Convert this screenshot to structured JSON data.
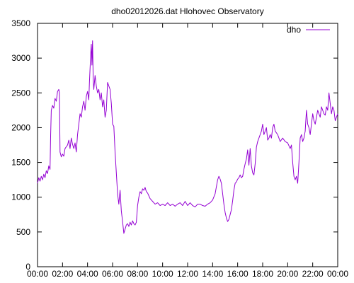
{
  "chart_data": {
    "type": "line",
    "title": "dho02012026.dat Hlohovec Observatory",
    "xlabel": "",
    "ylabel": "",
    "x_unit": "hours",
    "xlim": [
      0,
      24
    ],
    "ylim": [
      0,
      3500
    ],
    "x_ticks": [
      {
        "value": 0,
        "label": "00:00"
      },
      {
        "value": 2,
        "label": "02:00"
      },
      {
        "value": 4,
        "label": "04:00"
      },
      {
        "value": 6,
        "label": "06:00"
      },
      {
        "value": 8,
        "label": "08:00"
      },
      {
        "value": 10,
        "label": "10:00"
      },
      {
        "value": 12,
        "label": "12:00"
      },
      {
        "value": 14,
        "label": "14:00"
      },
      {
        "value": 16,
        "label": "16:00"
      },
      {
        "value": 18,
        "label": "18:00"
      },
      {
        "value": 20,
        "label": "20:00"
      },
      {
        "value": 22,
        "label": "22:00"
      },
      {
        "value": 24,
        "label": "00:00"
      }
    ],
    "y_ticks": [
      {
        "value": 0,
        "label": "0"
      },
      {
        "value": 500,
        "label": "500"
      },
      {
        "value": 1000,
        "label": "1000"
      },
      {
        "value": 1500,
        "label": "1500"
      },
      {
        "value": 2000,
        "label": "2000"
      },
      {
        "value": 2500,
        "label": "2500"
      },
      {
        "value": 3000,
        "label": "3000"
      },
      {
        "value": 3500,
        "label": "3500"
      }
    ],
    "grid": false,
    "legend_position": "top-right",
    "series": [
      {
        "name": "dho",
        "color": "#9400d3",
        "points": [
          [
            0.0,
            1200
          ],
          [
            0.1,
            1280
          ],
          [
            0.2,
            1230
          ],
          [
            0.3,
            1300
          ],
          [
            0.4,
            1250
          ],
          [
            0.5,
            1330
          ],
          [
            0.6,
            1280
          ],
          [
            0.7,
            1380
          ],
          [
            0.8,
            1340
          ],
          [
            0.9,
            1450
          ],
          [
            1.0,
            1400
          ],
          [
            1.05,
            1900
          ],
          [
            1.1,
            2250
          ],
          [
            1.2,
            2320
          ],
          [
            1.3,
            2280
          ],
          [
            1.4,
            2420
          ],
          [
            1.5,
            2380
          ],
          [
            1.6,
            2520
          ],
          [
            1.7,
            2550
          ],
          [
            1.75,
            2500
          ],
          [
            1.8,
            1650
          ],
          [
            1.9,
            1580
          ],
          [
            2.0,
            1620
          ],
          [
            2.1,
            1590
          ],
          [
            2.2,
            1700
          ],
          [
            2.4,
            1750
          ],
          [
            2.5,
            1820
          ],
          [
            2.6,
            1700
          ],
          [
            2.7,
            1850
          ],
          [
            2.8,
            1760
          ],
          [
            2.9,
            1700
          ],
          [
            3.0,
            1780
          ],
          [
            3.1,
            1650
          ],
          [
            3.2,
            1900
          ],
          [
            3.3,
            2050
          ],
          [
            3.4,
            2200
          ],
          [
            3.5,
            2150
          ],
          [
            3.6,
            2300
          ],
          [
            3.7,
            2380
          ],
          [
            3.8,
            2250
          ],
          [
            3.9,
            2450
          ],
          [
            4.0,
            2520
          ],
          [
            4.1,
            2400
          ],
          [
            4.15,
            2650
          ],
          [
            4.2,
            2850
          ],
          [
            4.25,
            3050
          ],
          [
            4.3,
            3200
          ],
          [
            4.35,
            2900
          ],
          [
            4.4,
            3250
          ],
          [
            4.45,
            2700
          ],
          [
            4.5,
            2550
          ],
          [
            4.6,
            2750
          ],
          [
            4.7,
            2600
          ],
          [
            4.8,
            2500
          ],
          [
            4.9,
            2550
          ],
          [
            5.0,
            2400
          ],
          [
            5.1,
            2500
          ],
          [
            5.2,
            2300
          ],
          [
            5.3,
            2400
          ],
          [
            5.4,
            2150
          ],
          [
            5.5,
            2250
          ],
          [
            5.6,
            2650
          ],
          [
            5.7,
            2600
          ],
          [
            5.8,
            2550
          ],
          [
            5.9,
            2350
          ],
          [
            6.0,
            2050
          ],
          [
            6.1,
            2020
          ],
          [
            6.2,
            1650
          ],
          [
            6.3,
            1350
          ],
          [
            6.4,
            1050
          ],
          [
            6.5,
            900
          ],
          [
            6.6,
            1100
          ],
          [
            6.7,
            800
          ],
          [
            6.8,
            650
          ],
          [
            6.9,
            480
          ],
          [
            7.0,
            540
          ],
          [
            7.1,
            600
          ],
          [
            7.2,
            620
          ],
          [
            7.3,
            580
          ],
          [
            7.4,
            640
          ],
          [
            7.5,
            600
          ],
          [
            7.6,
            660
          ],
          [
            7.7,
            620
          ],
          [
            7.8,
            600
          ],
          [
            7.9,
            640
          ],
          [
            8.0,
            880
          ],
          [
            8.1,
            1000
          ],
          [
            8.2,
            1080
          ],
          [
            8.3,
            1050
          ],
          [
            8.4,
            1120
          ],
          [
            8.5,
            1100
          ],
          [
            8.6,
            1140
          ],
          [
            8.7,
            1080
          ],
          [
            8.8,
            1060
          ],
          [
            8.9,
            1020
          ],
          [
            9.0,
            980
          ],
          [
            9.2,
            940
          ],
          [
            9.4,
            900
          ],
          [
            9.6,
            920
          ],
          [
            9.8,
            880
          ],
          [
            10.0,
            900
          ],
          [
            10.2,
            880
          ],
          [
            10.4,
            920
          ],
          [
            10.6,
            880
          ],
          [
            10.8,
            900
          ],
          [
            11.0,
            870
          ],
          [
            11.2,
            900
          ],
          [
            11.4,
            920
          ],
          [
            11.6,
            880
          ],
          [
            11.8,
            940
          ],
          [
            12.0,
            880
          ],
          [
            12.2,
            920
          ],
          [
            12.4,
            880
          ],
          [
            12.6,
            860
          ],
          [
            12.8,
            900
          ],
          [
            13.0,
            900
          ],
          [
            13.2,
            880
          ],
          [
            13.4,
            870
          ],
          [
            13.6,
            900
          ],
          [
            13.8,
            920
          ],
          [
            14.0,
            960
          ],
          [
            14.2,
            1050
          ],
          [
            14.3,
            1150
          ],
          [
            14.4,
            1250
          ],
          [
            14.5,
            1300
          ],
          [
            14.6,
            1260
          ],
          [
            14.7,
            1200
          ],
          [
            14.8,
            1050
          ],
          [
            14.9,
            900
          ],
          [
            15.0,
            780
          ],
          [
            15.1,
            700
          ],
          [
            15.2,
            650
          ],
          [
            15.3,
            680
          ],
          [
            15.4,
            750
          ],
          [
            15.5,
            820
          ],
          [
            15.6,
            950
          ],
          [
            15.7,
            1100
          ],
          [
            15.8,
            1200
          ],
          [
            15.9,
            1220
          ],
          [
            16.0,
            1260
          ],
          [
            16.1,
            1280
          ],
          [
            16.2,
            1320
          ],
          [
            16.3,
            1280
          ],
          [
            16.4,
            1300
          ],
          [
            16.5,
            1400
          ],
          [
            16.6,
            1480
          ],
          [
            16.7,
            1550
          ],
          [
            16.8,
            1680
          ],
          [
            16.9,
            1460
          ],
          [
            17.0,
            1700
          ],
          [
            17.1,
            1450
          ],
          [
            17.2,
            1350
          ],
          [
            17.3,
            1320
          ],
          [
            17.4,
            1480
          ],
          [
            17.5,
            1720
          ],
          [
            17.6,
            1800
          ],
          [
            17.7,
            1850
          ],
          [
            17.8,
            1900
          ],
          [
            17.9,
            1950
          ],
          [
            18.0,
            2050
          ],
          [
            18.1,
            1900
          ],
          [
            18.2,
            1950
          ],
          [
            18.3,
            2000
          ],
          [
            18.4,
            1820
          ],
          [
            18.5,
            1850
          ],
          [
            18.6,
            1900
          ],
          [
            18.7,
            1850
          ],
          [
            18.8,
            2000
          ],
          [
            18.9,
            2050
          ],
          [
            19.0,
            1950
          ],
          [
            19.2,
            1900
          ],
          [
            19.4,
            1800
          ],
          [
            19.6,
            1850
          ],
          [
            19.8,
            1800
          ],
          [
            20.0,
            1780
          ],
          [
            20.2,
            1700
          ],
          [
            20.3,
            1750
          ],
          [
            20.4,
            1500
          ],
          [
            20.5,
            1300
          ],
          [
            20.6,
            1250
          ],
          [
            20.7,
            1300
          ],
          [
            20.8,
            1200
          ],
          [
            20.9,
            1500
          ],
          [
            21.0,
            1850
          ],
          [
            21.1,
            1900
          ],
          [
            21.2,
            1800
          ],
          [
            21.3,
            1850
          ],
          [
            21.4,
            1950
          ],
          [
            21.5,
            2250
          ],
          [
            21.6,
            2050
          ],
          [
            21.7,
            2000
          ],
          [
            21.8,
            1900
          ],
          [
            21.9,
            2050
          ],
          [
            22.0,
            2200
          ],
          [
            22.1,
            2100
          ],
          [
            22.2,
            2050
          ],
          [
            22.3,
            2150
          ],
          [
            22.4,
            2250
          ],
          [
            22.5,
            2200
          ],
          [
            22.6,
            2150
          ],
          [
            22.7,
            2300
          ],
          [
            22.8,
            2250
          ],
          [
            22.9,
            2200
          ],
          [
            23.0,
            2180
          ],
          [
            23.1,
            2300
          ],
          [
            23.2,
            2250
          ],
          [
            23.3,
            2500
          ],
          [
            23.4,
            2350
          ],
          [
            23.5,
            2200
          ],
          [
            23.6,
            2300
          ],
          [
            23.7,
            2250
          ],
          [
            23.8,
            2100
          ],
          [
            23.9,
            2150
          ],
          [
            24.0,
            2200
          ]
        ]
      }
    ]
  }
}
